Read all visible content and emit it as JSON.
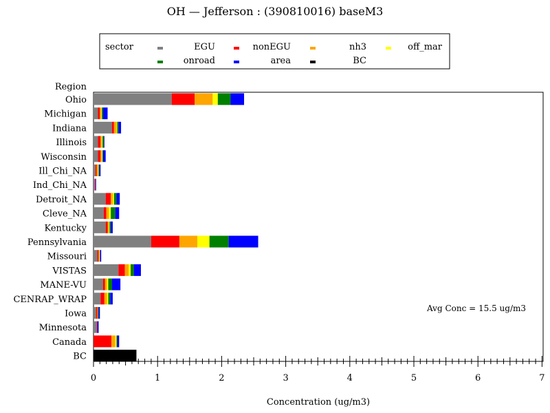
{
  "chart_data": {
    "type": "bar",
    "orientation": "horizontal",
    "stacked": true,
    "title": "OH — Jefferson : (390810016) baseM3",
    "xlabel": "Concentration (ug/m3)",
    "ylabel": "Region",
    "xlim": [
      0,
      7
    ],
    "x_ticks": [
      "0",
      "1",
      "2",
      "3",
      "4",
      "5",
      "6",
      "7"
    ],
    "legend_title": "sector",
    "legend_position": "top",
    "annotation": "Avg Conc =  15.5 ug/m3",
    "categories": [
      "Ohio",
      "Michigan",
      "Indiana",
      "Illinois",
      "Wisconsin",
      "Ill_Chi_NA",
      "Ind_Chi_NA",
      "Detroit_NA",
      "Cleve_NA",
      "Kentucky",
      "Pennsylvania",
      "Missouri",
      "VISTAS",
      "MANE-VU",
      "CENRAP_WRAP",
      "Iowa",
      "Minnesota",
      "Canada",
      "BC"
    ],
    "series": [
      {
        "name": "EGU",
        "color": "#808080",
        "values": [
          1.22,
          0.07,
          0.29,
          0.07,
          0.07,
          0.03,
          0.02,
          0.19,
          0.16,
          0.19,
          0.9,
          0.06,
          0.39,
          0.15,
          0.11,
          0.04,
          0.05,
          0.0,
          0.0
        ]
      },
      {
        "name": "nonEGU",
        "color": "#ff0000",
        "values": [
          0.36,
          0.03,
          0.03,
          0.04,
          0.04,
          0.02,
          0.01,
          0.08,
          0.04,
          0.03,
          0.44,
          0.02,
          0.1,
          0.03,
          0.06,
          0.02,
          0.01,
          0.28,
          0.0
        ]
      },
      {
        "name": "nh3",
        "color": "#ffa500",
        "values": [
          0.28,
          0.02,
          0.04,
          0.02,
          0.02,
          0.02,
          0.0,
          0.03,
          0.04,
          0.02,
          0.28,
          0.01,
          0.06,
          0.03,
          0.04,
          0.01,
          0.0,
          0.06,
          0.0
        ]
      },
      {
        "name": "off_mar",
        "color": "#ffff00",
        "values": [
          0.08,
          0.01,
          0.01,
          0.01,
          0.01,
          0.01,
          0.0,
          0.02,
          0.03,
          0.01,
          0.19,
          0.01,
          0.03,
          0.02,
          0.02,
          0.0,
          0.0,
          0.02,
          0.0
        ]
      },
      {
        "name": "onroad",
        "color": "#008000",
        "values": [
          0.2,
          0.02,
          0.02,
          0.02,
          0.01,
          0.01,
          0.0,
          0.04,
          0.07,
          0.02,
          0.3,
          0.0,
          0.05,
          0.06,
          0.03,
          0.01,
          0.0,
          0.01,
          0.0
        ]
      },
      {
        "name": "area",
        "color": "#0000ff",
        "values": [
          0.21,
          0.07,
          0.04,
          0.01,
          0.04,
          0.02,
          0.01,
          0.05,
          0.06,
          0.03,
          0.46,
          0.02,
          0.11,
          0.13,
          0.04,
          0.02,
          0.02,
          0.03,
          0.0
        ]
      },
      {
        "name": "BC",
        "color": "#000000",
        "values": [
          0,
          0,
          0,
          0,
          0,
          0,
          0,
          0,
          0,
          0,
          0,
          0,
          0,
          0,
          0,
          0,
          0,
          0,
          0.67
        ]
      }
    ]
  }
}
